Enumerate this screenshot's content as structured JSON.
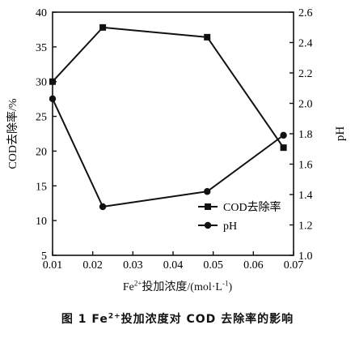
{
  "chart_data": {
    "type": "line",
    "x_axis": {
      "label_prefix": "Fe",
      "label_sup": "2+",
      "label_main": "投加浓度/(mol·L",
      "label_sup2": "-1",
      "label_end": ")",
      "range": [
        0.01,
        0.07
      ],
      "ticks": [
        "0.01",
        "0.02",
        "0.03",
        "0.04",
        "0.05",
        "0.06",
        "0.07"
      ],
      "tick_values": [
        0.01,
        0.02,
        0.03,
        0.04,
        0.05,
        0.06,
        0.07
      ]
    },
    "y_left": {
      "label": "COD去除率/%",
      "range": [
        5,
        40
      ],
      "ticks": [
        "5",
        "10",
        "15",
        "20",
        "25",
        "30",
        "35",
        "40"
      ],
      "tick_values": [
        5,
        10,
        15,
        20,
        25,
        30,
        35,
        40
      ]
    },
    "y_right": {
      "label": "pH",
      "range": [
        1.0,
        2.6
      ],
      "ticks": [
        "1.0",
        "1.2",
        "1.4",
        "1.6",
        "1.8",
        "2.0",
        "2.2",
        "2.4",
        "2.6"
      ],
      "tick_values": [
        1.0,
        1.2,
        1.4,
        1.6,
        1.8,
        2.0,
        2.2,
        2.4,
        2.6
      ]
    },
    "series": [
      {
        "name": "COD去除率",
        "axis": "left",
        "marker": "square",
        "x": [
          0.01,
          0.0225,
          0.0485,
          0.0675
        ],
        "y": [
          30.0,
          37.8,
          36.4,
          20.5
        ]
      },
      {
        "name": "pH",
        "axis": "right",
        "marker": "circle",
        "x": [
          0.01,
          0.0225,
          0.0485,
          0.0675
        ],
        "y": [
          2.03,
          1.32,
          1.42,
          1.79
        ]
      }
    ],
    "legend_position": "bottom-right",
    "grid": false
  },
  "caption": {
    "prefix": "图 1   Fe",
    "sup": "2+",
    "rest": "投加浓度对 COD 去除率的影响"
  }
}
